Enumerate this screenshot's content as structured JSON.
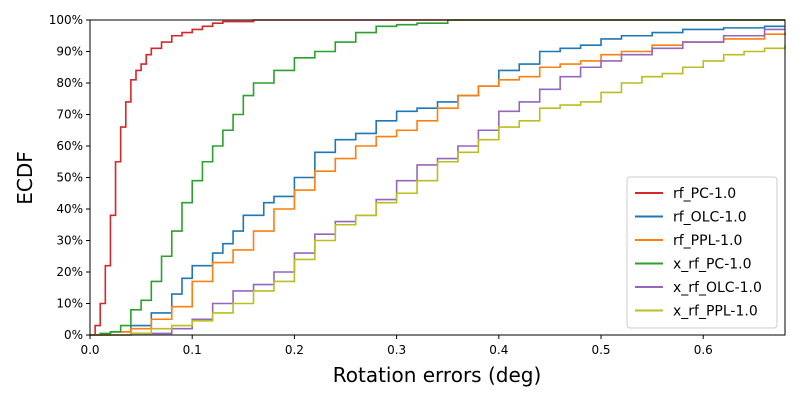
{
  "chart_data": {
    "type": "line",
    "step": true,
    "title": "",
    "xlabel": "Rotation errors (deg)",
    "ylabel": "ECDF",
    "xlim": [
      0,
      0.68
    ],
    "ylim": [
      0,
      1.0
    ],
    "x_ticks": [
      0,
      0.1,
      0.2,
      0.3,
      0.4,
      0.5,
      0.6
    ],
    "x_tick_labels": [
      "0.0",
      "0.1",
      "0.2",
      "0.3",
      "0.4",
      "0.5",
      "0.6"
    ],
    "y_ticks": [
      0,
      0.1,
      0.2,
      0.3,
      0.4,
      0.5,
      0.6,
      0.7,
      0.8,
      0.9,
      1.0
    ],
    "y_tick_labels": [
      "0%",
      "10%",
      "20%",
      "30%",
      "40%",
      "50%",
      "60%",
      "70%",
      "80%",
      "90%",
      "100%"
    ],
    "legend_position": "lower-right",
    "grid": false,
    "series": [
      {
        "name": "rf_PC-1.0",
        "color": "#d62728",
        "points": [
          [
            0,
            0
          ],
          [
            0.005,
            0.03
          ],
          [
            0.01,
            0.1
          ],
          [
            0.015,
            0.22
          ],
          [
            0.02,
            0.38
          ],
          [
            0.025,
            0.55
          ],
          [
            0.03,
            0.66
          ],
          [
            0.035,
            0.74
          ],
          [
            0.04,
            0.81
          ],
          [
            0.045,
            0.84
          ],
          [
            0.05,
            0.86
          ],
          [
            0.055,
            0.89
          ],
          [
            0.06,
            0.91
          ],
          [
            0.07,
            0.93
          ],
          [
            0.08,
            0.95
          ],
          [
            0.09,
            0.96
          ],
          [
            0.1,
            0.97
          ],
          [
            0.11,
            0.98
          ],
          [
            0.12,
            0.99
          ],
          [
            0.13,
            0.995
          ],
          [
            0.16,
            1.0
          ]
        ]
      },
      {
        "name": "rf_OLC-1.0",
        "color": "#1f77b4",
        "points": [
          [
            0,
            0
          ],
          [
            0.02,
            0.01
          ],
          [
            0.04,
            0.03
          ],
          [
            0.06,
            0.07
          ],
          [
            0.08,
            0.13
          ],
          [
            0.09,
            0.18
          ],
          [
            0.1,
            0.22
          ],
          [
            0.12,
            0.26
          ],
          [
            0.13,
            0.29
          ],
          [
            0.14,
            0.33
          ],
          [
            0.15,
            0.38
          ],
          [
            0.17,
            0.42
          ],
          [
            0.18,
            0.44
          ],
          [
            0.2,
            0.5
          ],
          [
            0.22,
            0.58
          ],
          [
            0.24,
            0.62
          ],
          [
            0.26,
            0.64
          ],
          [
            0.28,
            0.68
          ],
          [
            0.3,
            0.71
          ],
          [
            0.32,
            0.72
          ],
          [
            0.34,
            0.74
          ],
          [
            0.36,
            0.76
          ],
          [
            0.38,
            0.79
          ],
          [
            0.4,
            0.84
          ],
          [
            0.42,
            0.86
          ],
          [
            0.44,
            0.9
          ],
          [
            0.46,
            0.91
          ],
          [
            0.48,
            0.92
          ],
          [
            0.5,
            0.94
          ],
          [
            0.52,
            0.95
          ],
          [
            0.55,
            0.96
          ],
          [
            0.58,
            0.97
          ],
          [
            0.62,
            0.975
          ],
          [
            0.66,
            0.98
          ],
          [
            0.68,
            0.98
          ]
        ]
      },
      {
        "name": "rf_PPL-1.0",
        "color": "#ff7f0e",
        "points": [
          [
            0,
            0
          ],
          [
            0.02,
            0.01
          ],
          [
            0.04,
            0.02
          ],
          [
            0.06,
            0.05
          ],
          [
            0.08,
            0.09
          ],
          [
            0.1,
            0.17
          ],
          [
            0.12,
            0.23
          ],
          [
            0.14,
            0.27
          ],
          [
            0.16,
            0.33
          ],
          [
            0.18,
            0.4
          ],
          [
            0.2,
            0.46
          ],
          [
            0.22,
            0.52
          ],
          [
            0.24,
            0.56
          ],
          [
            0.26,
            0.6
          ],
          [
            0.28,
            0.63
          ],
          [
            0.3,
            0.65
          ],
          [
            0.32,
            0.68
          ],
          [
            0.34,
            0.72
          ],
          [
            0.36,
            0.76
          ],
          [
            0.38,
            0.79
          ],
          [
            0.4,
            0.81
          ],
          [
            0.42,
            0.82
          ],
          [
            0.44,
            0.85
          ],
          [
            0.46,
            0.86
          ],
          [
            0.48,
            0.87
          ],
          [
            0.5,
            0.89
          ],
          [
            0.52,
            0.9
          ],
          [
            0.55,
            0.92
          ],
          [
            0.58,
            0.93
          ],
          [
            0.62,
            0.94
          ],
          [
            0.66,
            0.955
          ],
          [
            0.68,
            0.96
          ]
        ]
      },
      {
        "name": "x_rf_PC-1.0",
        "color": "#2ca02c",
        "points": [
          [
            0,
            0
          ],
          [
            0.01,
            0.005
          ],
          [
            0.02,
            0.01
          ],
          [
            0.03,
            0.03
          ],
          [
            0.04,
            0.08
          ],
          [
            0.05,
            0.11
          ],
          [
            0.06,
            0.17
          ],
          [
            0.07,
            0.25
          ],
          [
            0.08,
            0.33
          ],
          [
            0.09,
            0.42
          ],
          [
            0.1,
            0.49
          ],
          [
            0.11,
            0.55
          ],
          [
            0.12,
            0.6
          ],
          [
            0.13,
            0.65
          ],
          [
            0.14,
            0.7
          ],
          [
            0.15,
            0.76
          ],
          [
            0.16,
            0.8
          ],
          [
            0.18,
            0.84
          ],
          [
            0.2,
            0.88
          ],
          [
            0.22,
            0.9
          ],
          [
            0.24,
            0.93
          ],
          [
            0.26,
            0.96
          ],
          [
            0.28,
            0.98
          ],
          [
            0.3,
            0.985
          ],
          [
            0.32,
            0.99
          ],
          [
            0.35,
            1.0
          ]
        ]
      },
      {
        "name": "x_rf_OLC-1.0",
        "color": "#9467bd",
        "points": [
          [
            0,
            0
          ],
          [
            0.04,
            0.005
          ],
          [
            0.08,
            0.02
          ],
          [
            0.1,
            0.05
          ],
          [
            0.12,
            0.1
          ],
          [
            0.14,
            0.14
          ],
          [
            0.16,
            0.16
          ],
          [
            0.18,
            0.2
          ],
          [
            0.2,
            0.26
          ],
          [
            0.22,
            0.32
          ],
          [
            0.24,
            0.36
          ],
          [
            0.26,
            0.38
          ],
          [
            0.28,
            0.43
          ],
          [
            0.3,
            0.49
          ],
          [
            0.32,
            0.54
          ],
          [
            0.34,
            0.56
          ],
          [
            0.36,
            0.6
          ],
          [
            0.38,
            0.65
          ],
          [
            0.4,
            0.71
          ],
          [
            0.42,
            0.74
          ],
          [
            0.44,
            0.78
          ],
          [
            0.46,
            0.82
          ],
          [
            0.48,
            0.85
          ],
          [
            0.5,
            0.87
          ],
          [
            0.52,
            0.89
          ],
          [
            0.55,
            0.91
          ],
          [
            0.58,
            0.93
          ],
          [
            0.62,
            0.95
          ],
          [
            0.66,
            0.97
          ],
          [
            0.68,
            0.97
          ]
        ]
      },
      {
        "name": "x_rf_PPL-1.0",
        "color": "#bcbd22",
        "points": [
          [
            0,
            0
          ],
          [
            0.04,
            0.005
          ],
          [
            0.06,
            0.02
          ],
          [
            0.08,
            0.03
          ],
          [
            0.1,
            0.045
          ],
          [
            0.12,
            0.07
          ],
          [
            0.14,
            0.1
          ],
          [
            0.16,
            0.14
          ],
          [
            0.18,
            0.17
          ],
          [
            0.2,
            0.24
          ],
          [
            0.22,
            0.3
          ],
          [
            0.24,
            0.35
          ],
          [
            0.26,
            0.38
          ],
          [
            0.28,
            0.42
          ],
          [
            0.3,
            0.45
          ],
          [
            0.32,
            0.49
          ],
          [
            0.34,
            0.55
          ],
          [
            0.36,
            0.58
          ],
          [
            0.38,
            0.62
          ],
          [
            0.4,
            0.66
          ],
          [
            0.42,
            0.68
          ],
          [
            0.44,
            0.72
          ],
          [
            0.46,
            0.73
          ],
          [
            0.48,
            0.74
          ],
          [
            0.5,
            0.77
          ],
          [
            0.52,
            0.8
          ],
          [
            0.54,
            0.82
          ],
          [
            0.56,
            0.83
          ],
          [
            0.58,
            0.85
          ],
          [
            0.6,
            0.87
          ],
          [
            0.62,
            0.89
          ],
          [
            0.64,
            0.9
          ],
          [
            0.66,
            0.91
          ],
          [
            0.68,
            0.92
          ]
        ]
      }
    ]
  }
}
